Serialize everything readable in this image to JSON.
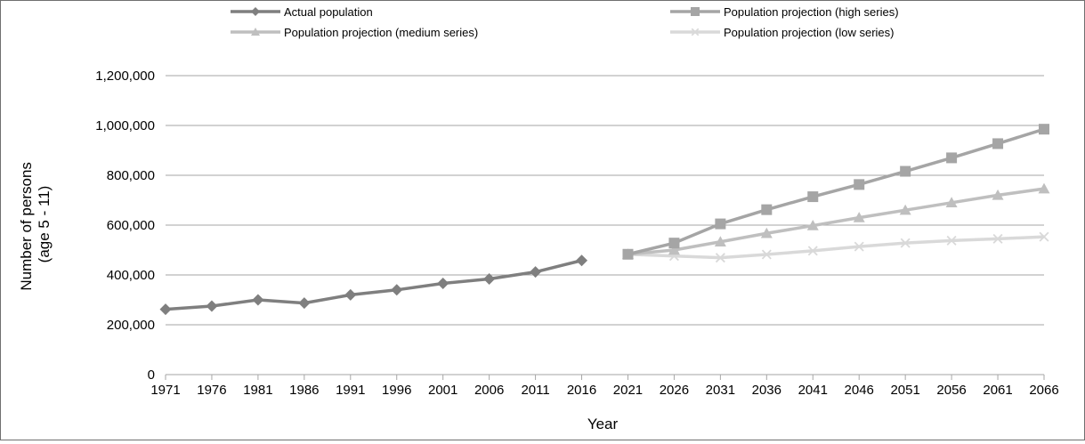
{
  "chart_data": {
    "type": "line",
    "title": "",
    "xlabel": "Year",
    "ylabel_lines": [
      "Number of persons",
      "(age 5 - 11)"
    ],
    "ylim": [
      0,
      1200000
    ],
    "y_ticks": [
      0,
      200000,
      400000,
      600000,
      800000,
      1000000,
      1200000
    ],
    "y_tick_labels": [
      "0",
      "200,000",
      "400,000",
      "600,000",
      "800,000",
      "1,000,000",
      "1,200,000"
    ],
    "categories": [
      "1971",
      "1976",
      "1981",
      "1986",
      "1991",
      "1996",
      "2001",
      "2006",
      "2011",
      "2016",
      "2021",
      "2026",
      "2031",
      "2036",
      "2041",
      "2046",
      "2051",
      "2056",
      "2061",
      "2066"
    ],
    "grid": "horizontal",
    "legend_position": "top",
    "series": [
      {
        "name": "Actual population",
        "marker": "diamond",
        "color": "#7f7f7f",
        "values": [
          262000,
          275000,
          300000,
          287000,
          320000,
          340000,
          366000,
          384000,
          412000,
          458000,
          null,
          null,
          null,
          null,
          null,
          null,
          null,
          null,
          null,
          null
        ]
      },
      {
        "name": "Population projection (high series)",
        "marker": "square",
        "color": "#a5a5a5",
        "values": [
          null,
          null,
          null,
          null,
          null,
          null,
          null,
          null,
          null,
          null,
          483000,
          528000,
          605000,
          662000,
          714000,
          763000,
          816000,
          870000,
          927000,
          985000
        ]
      },
      {
        "name": "Population projection (medium series)",
        "marker": "triangle",
        "color": "#bfbfbf",
        "values": [
          null,
          null,
          null,
          null,
          null,
          null,
          null,
          null,
          null,
          null,
          483000,
          500000,
          533000,
          567000,
          598000,
          630000,
          660000,
          690000,
          720000,
          746000
        ]
      },
      {
        "name": "Population projection (low series)",
        "marker": "x",
        "color": "#d9d9d9",
        "values": [
          null,
          null,
          null,
          null,
          null,
          null,
          null,
          null,
          null,
          null,
          483000,
          476000,
          469000,
          482000,
          497000,
          514000,
          528000,
          538000,
          545000,
          553000
        ]
      }
    ]
  }
}
